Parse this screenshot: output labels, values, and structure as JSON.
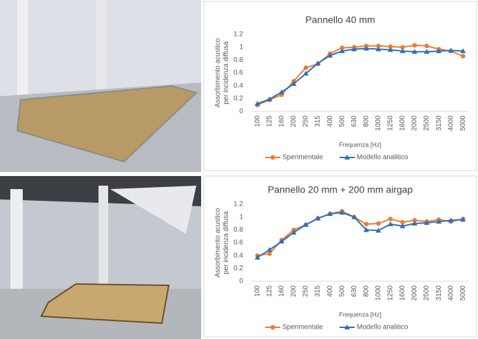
{
  "chart_data": [
    {
      "type": "line",
      "title": "Pannello 40 mm",
      "y_label": "Assorbimento acustico per incidenza diffusa",
      "x_label": "Frequenza [Hz]",
      "categories": [
        "100",
        "125",
        "160",
        "200",
        "250",
        "315",
        "400",
        "500",
        "630",
        "800",
        "1000",
        "1250",
        "1600",
        "2000",
        "2500",
        "3150",
        "4000",
        "5000"
      ],
      "series": [
        {
          "name": "Sperimentale",
          "color": "#ed7d31",
          "marker": "circle",
          "values": [
            0.1,
            0.18,
            0.26,
            0.47,
            0.68,
            0.74,
            0.9,
            0.99,
            1.0,
            1.02,
            1.02,
            1.01,
            1.0,
            1.03,
            1.02,
            0.97,
            0.94,
            0.86
          ]
        },
        {
          "name": "Modello analitico",
          "color": "#2e6fba",
          "marker": "triangle",
          "values": [
            0.12,
            0.19,
            0.3,
            0.43,
            0.59,
            0.75,
            0.87,
            0.94,
            0.97,
            0.98,
            0.97,
            0.96,
            0.94,
            0.93,
            0.93,
            0.94,
            0.95,
            0.94
          ]
        }
      ],
      "ylim": [
        0,
        1.2
      ],
      "yticks": [
        0,
        0.2,
        0.4,
        0.6,
        0.8,
        1,
        1.2
      ],
      "grid": false,
      "legend": "bottom"
    },
    {
      "type": "line",
      "title": "Pannello 20 mm + 200 mm airgap",
      "y_label": "Assorbimento acustico per incidenza diffusa",
      "x_label": "Frequenza [Hz]",
      "categories": [
        "100",
        "125",
        "160",
        "200",
        "250",
        "315",
        "400",
        "500",
        "630",
        "800",
        "1000",
        "1250",
        "1600",
        "2000",
        "2500",
        "3150",
        "4000",
        "5000"
      ],
      "series": [
        {
          "name": "Sperimentale",
          "color": "#ed7d31",
          "marker": "circle",
          "values": [
            0.4,
            0.43,
            0.64,
            0.8,
            0.88,
            0.98,
            1.05,
            1.09,
            1.0,
            0.89,
            0.9,
            0.97,
            0.92,
            0.95,
            0.93,
            0.96,
            0.93,
            0.97
          ]
        },
        {
          "name": "Modello analitico",
          "color": "#2e6fba",
          "marker": "triangle",
          "values": [
            0.37,
            0.49,
            0.62,
            0.76,
            0.88,
            0.98,
            1.05,
            1.07,
            1.0,
            0.8,
            0.79,
            0.89,
            0.86,
            0.9,
            0.91,
            0.93,
            0.95,
            0.96
          ]
        }
      ],
      "ylim": [
        0,
        1.2
      ],
      "yticks": [
        0,
        0.2,
        0.4,
        0.6,
        0.8,
        1,
        1.2
      ],
      "grid": false,
      "legend": "bottom"
    }
  ]
}
